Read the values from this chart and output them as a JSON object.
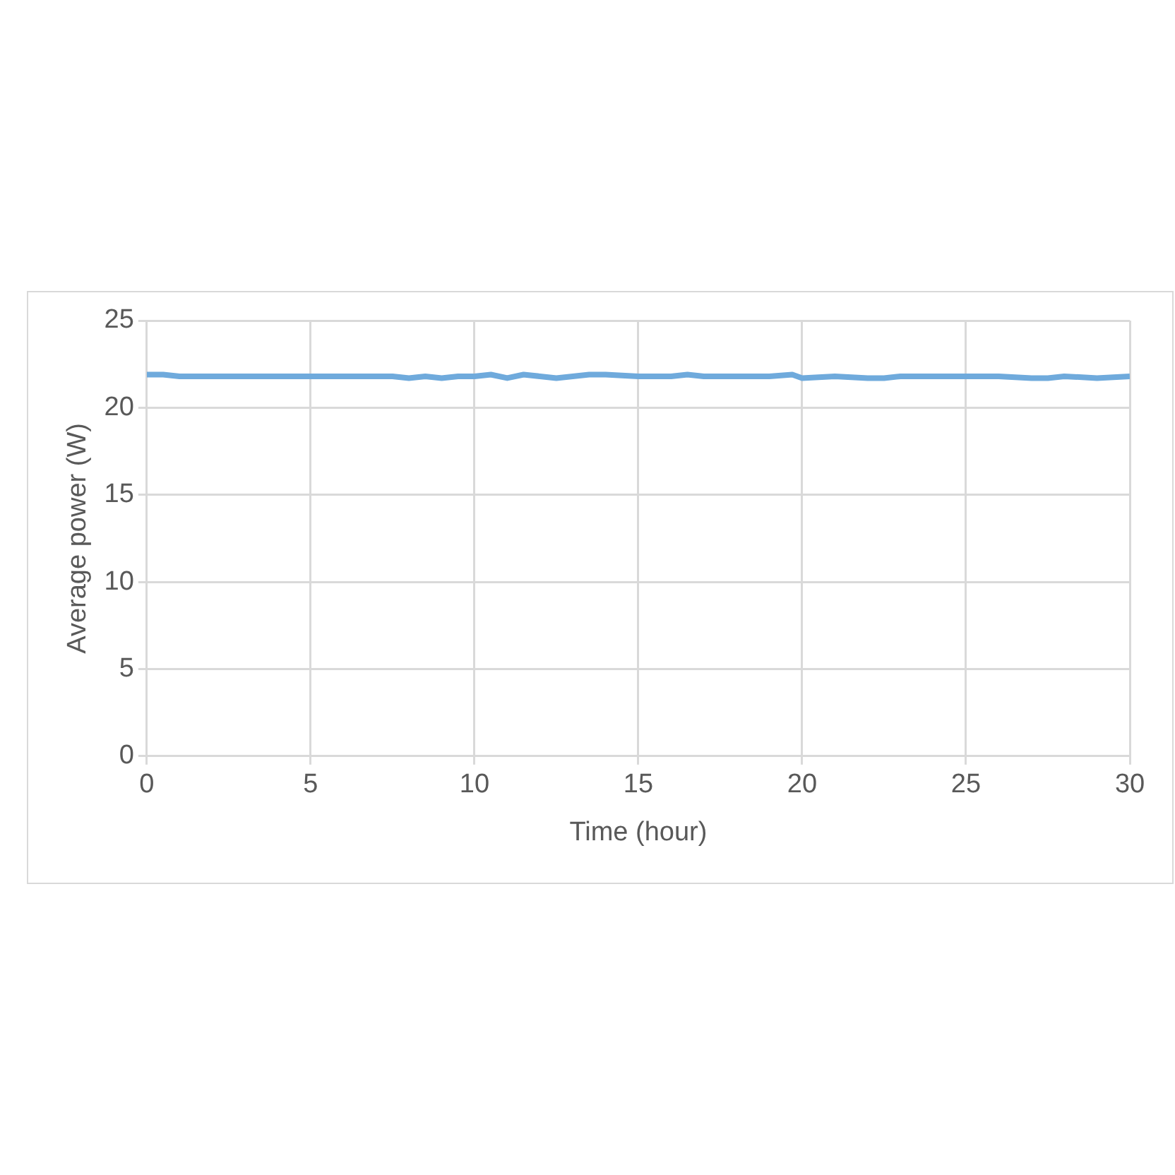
{
  "chart_data": {
    "type": "line",
    "xlabel": "Time (hour)",
    "ylabel": "Average power (W)",
    "x": [
      0,
      0.5,
      1,
      1.5,
      2,
      3,
      4,
      5,
      6,
      7,
      7.5,
      8,
      8.5,
      9,
      9.5,
      10,
      10.5,
      11,
      11.5,
      12,
      12.5,
      13,
      13.5,
      14,
      15,
      16,
      16.5,
      17,
      18,
      19,
      19.7,
      20,
      21,
      22,
      22.5,
      23,
      24,
      25,
      26,
      27,
      27.5,
      28,
      29,
      30
    ],
    "series": [
      {
        "color": "#6faadc",
        "values": [
          21.9,
          21.9,
          21.8,
          21.8,
          21.8,
          21.8,
          21.8,
          21.8,
          21.8,
          21.8,
          21.8,
          21.7,
          21.8,
          21.7,
          21.8,
          21.8,
          21.9,
          21.7,
          21.9,
          21.8,
          21.7,
          21.8,
          21.9,
          21.9,
          21.8,
          21.8,
          21.9,
          21.8,
          21.8,
          21.8,
          21.9,
          21.7,
          21.8,
          21.7,
          21.7,
          21.8,
          21.8,
          21.8,
          21.8,
          21.7,
          21.7,
          21.8,
          21.7,
          21.8
        ]
      }
    ],
    "xlim": [
      0,
      30
    ],
    "xticks": [
      0,
      5,
      10,
      15,
      20,
      25,
      30
    ],
    "ylim": [
      0,
      25
    ],
    "yticks": [
      0,
      5,
      10,
      15,
      20,
      25
    ],
    "grid": true,
    "legend": false,
    "marker": "none",
    "line_style": "solid"
  }
}
